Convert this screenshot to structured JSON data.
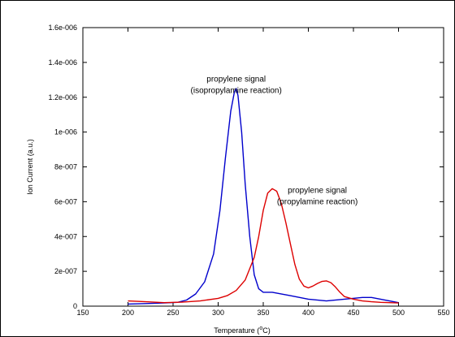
{
  "chart_data": {
    "type": "line",
    "title": "",
    "xlabel": "Temperature (",
    "xlabel_superscript": "o",
    "xlabel_unit": "C)",
    "ylabel": "Ion Current (a.u.)",
    "xlim": [
      150,
      550
    ],
    "ylim": [
      0,
      1.6e-06
    ],
    "x_ticks": [
      150,
      200,
      250,
      300,
      350,
      400,
      450,
      500,
      550
    ],
    "x_tick_labels": [
      "150",
      "200",
      "250",
      "300",
      "350",
      "400",
      "450",
      "500",
      "550"
    ],
    "y_ticks": [
      0,
      2e-07,
      4e-07,
      6e-07,
      8e-07,
      1e-06,
      1.2e-06,
      1.4e-06,
      1.6e-06
    ],
    "y_tick_labels": [
      "0",
      "2e-007",
      "4e-007",
      "6e-007",
      "8e-007",
      "1e-006",
      "1.2e-006",
      "1.4e-006",
      "1.6e-006"
    ],
    "grid": false,
    "series": [
      {
        "color": "#0000cc",
        "x": [
          200,
          220,
          240,
          255,
          265,
          275,
          285,
          295,
          302,
          308,
          314,
          318,
          320,
          322,
          326,
          330,
          335,
          340,
          345,
          350,
          360,
          380,
          400,
          420,
          440,
          460,
          470,
          480,
          490,
          500
        ],
        "y": [
          1.2e-08,
          1.5e-08,
          1.8e-08,
          2.2e-08,
          3.5e-08,
          7e-08,
          1.4e-07,
          3e-07,
          5.5e-07,
          8.5e-07,
          1.12e-06,
          1.23e-06,
          1.25e-06,
          1.21e-06,
          1e-06,
          7e-07,
          4e-07,
          1.8e-07,
          1e-07,
          8e-08,
          8e-08,
          6e-08,
          4e-08,
          3e-08,
          4e-08,
          5e-08,
          5e-08,
          4e-08,
          3e-08,
          2e-08
        ]
      },
      {
        "color": "#dd0000",
        "x": [
          200,
          220,
          240,
          260,
          280,
          300,
          310,
          320,
          330,
          340,
          345,
          350,
          355,
          360,
          365,
          370,
          375,
          380,
          385,
          390,
          395,
          400,
          405,
          410,
          415,
          420,
          425,
          430,
          435,
          440,
          450,
          460,
          470,
          480,
          490,
          500
        ],
        "y": [
          3e-08,
          2.5e-08,
          2e-08,
          2.3e-08,
          3e-08,
          4.5e-08,
          6e-08,
          9e-08,
          1.5e-07,
          2.8e-07,
          4e-07,
          5.5e-07,
          6.5e-07,
          6.75e-07,
          6.6e-07,
          5.9e-07,
          4.8e-07,
          3.6e-07,
          2.4e-07,
          1.55e-07,
          1.15e-07,
          1.05e-07,
          1.15e-07,
          1.3e-07,
          1.42e-07,
          1.45e-07,
          1.35e-07,
          1.1e-07,
          8e-08,
          5.5e-08,
          4e-08,
          3e-08,
          2.5e-08,
          2.2e-08,
          2e-08,
          1.8e-08
        ]
      }
    ],
    "annotations": [
      {
        "lines": [
          "propylene signal",
          "(isopropylamine reaction)"
        ],
        "x": 320,
        "y": 1.29e-06
      },
      {
        "lines": [
          "propylene signal",
          "(propylamine reaction)"
        ],
        "x": 410,
        "y": 6.5e-07
      }
    ]
  }
}
